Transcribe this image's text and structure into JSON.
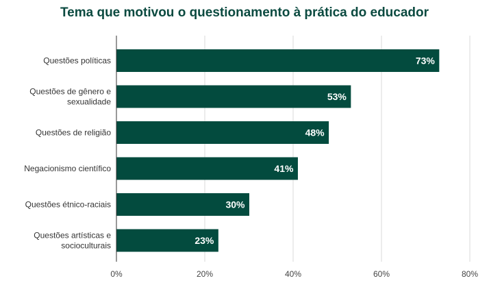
{
  "chart_data": {
    "type": "bar",
    "orientation": "horizontal",
    "title": "Tema que motivou o questionamento à prática do educador",
    "categories": [
      [
        "Questões políticas"
      ],
      [
        "Questões de gênero e",
        "sexualidade"
      ],
      [
        "Questões de religião"
      ],
      [
        "Negacionismo científico"
      ],
      [
        "Questões étnico-raciais"
      ],
      [
        "Questões artísticas e",
        "socioculturais"
      ]
    ],
    "values": [
      73,
      53,
      48,
      41,
      30,
      23
    ],
    "data_labels": [
      "73%",
      "53%",
      "48%",
      "41%",
      "30%",
      "23%"
    ],
    "xlim": [
      0,
      80
    ],
    "xticks": [
      0,
      20,
      40,
      60,
      80
    ],
    "xtick_labels": [
      "0%",
      "20%",
      "40%",
      "60%",
      "80%"
    ],
    "grid": true,
    "bar_color": "#034b3e",
    "title_color": "#0b4a40"
  }
}
